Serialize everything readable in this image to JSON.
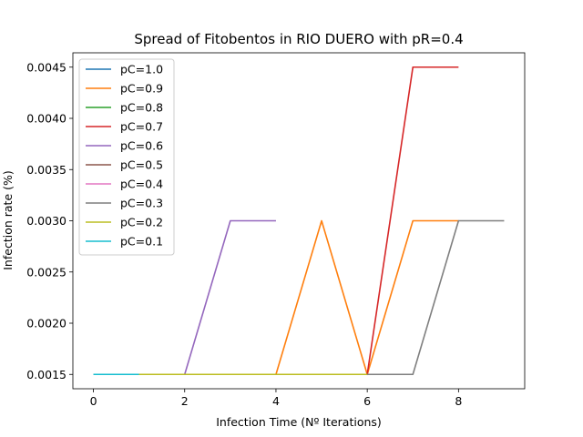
{
  "chart_data": {
    "type": "line",
    "title": "Spread of Fitobentos in RIO DUERO with pR=0.4",
    "xlabel": "Infection Time (Nº Iterations)",
    "ylabel": "Infection rate (%)",
    "xlim": [
      -0.45,
      9.45
    ],
    "ylim": [
      0.00136,
      0.00464
    ],
    "xticks": [
      0,
      2,
      4,
      6,
      8
    ],
    "yticks": [
      0.0015,
      0.002,
      0.0025,
      0.003,
      0.0035,
      0.004,
      0.0045
    ],
    "ytick_labels": [
      "0.0015",
      "0.0020",
      "0.0025",
      "0.0030",
      "0.0035",
      "0.0040",
      "0.0045"
    ],
    "grid": false,
    "legend_position": "upper-left",
    "series": [
      {
        "name": "pC=1.0",
        "color": "#1f77b4",
        "x": [
          0,
          1
        ],
        "y": [
          0.0015,
          0.0015
        ]
      },
      {
        "name": "pC=0.9",
        "color": "#ff7f0e",
        "x": [
          0,
          1,
          2,
          3,
          4,
          5,
          6,
          7,
          8
        ],
        "y": [
          0.0015,
          0.0015,
          0.0015,
          0.0015,
          0.0015,
          0.003,
          0.0015,
          0.003,
          0.003
        ]
      },
      {
        "name": "pC=0.8",
        "color": "#2ca02c",
        "x": [
          0,
          1
        ],
        "y": [
          0.0015,
          0.0015
        ]
      },
      {
        "name": "pC=0.7",
        "color": "#d62728",
        "x": [
          0,
          1,
          2,
          3,
          4,
          5,
          6,
          7,
          8
        ],
        "y": [
          0.0015,
          0.0015,
          0.0015,
          0.0015,
          0.0015,
          0.0015,
          0.0015,
          0.0045,
          0.0045
        ]
      },
      {
        "name": "pC=0.6",
        "color": "#9467bd",
        "x": [
          0,
          1,
          2,
          3,
          4
        ],
        "y": [
          0.0015,
          0.0015,
          0.0015,
          0.003,
          0.003
        ]
      },
      {
        "name": "pC=0.5",
        "color": "#8c564b",
        "x": [
          0,
          1
        ],
        "y": [
          0.0015,
          0.0015
        ]
      },
      {
        "name": "pC=0.4",
        "color": "#e377c2",
        "x": [
          0,
          1
        ],
        "y": [
          0.0015,
          0.0015
        ]
      },
      {
        "name": "pC=0.3",
        "color": "#7f7f7f",
        "x": [
          0,
          1,
          2,
          3,
          4,
          5,
          6,
          7,
          8,
          9
        ],
        "y": [
          0.0015,
          0.0015,
          0.0015,
          0.0015,
          0.0015,
          0.0015,
          0.0015,
          0.0015,
          0.003,
          0.003
        ]
      },
      {
        "name": "pC=0.2",
        "color": "#bcbd22",
        "x": [
          0,
          1,
          2,
          3,
          4,
          5,
          6
        ],
        "y": [
          0.0015,
          0.0015,
          0.0015,
          0.0015,
          0.0015,
          0.0015,
          0.0015
        ]
      },
      {
        "name": "pC=0.1",
        "color": "#17becf",
        "x": [
          0,
          1
        ],
        "y": [
          0.0015,
          0.0015
        ]
      }
    ]
  }
}
